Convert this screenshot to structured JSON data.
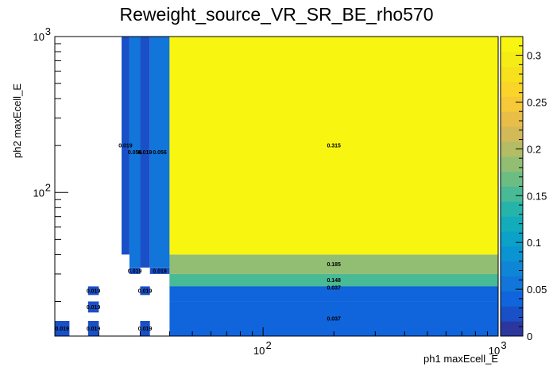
{
  "chart_data": {
    "type": "heatmap",
    "title": "Reweight_source_VR_SR_BE_rho570",
    "xlabel": "ph1 maxEcell_E",
    "ylabel": "ph2 maxEcell_E",
    "x_scale": "log",
    "y_scale": "log",
    "xlim": [
      13,
      1000
    ],
    "ylim": [
      12,
      1000
    ],
    "x_tick_labels": [
      {
        "value": 100,
        "base": "10",
        "exp": "2"
      },
      {
        "value": 1000,
        "base": "10",
        "exp": "3"
      }
    ],
    "y_tick_labels": [
      {
        "value": 100,
        "base": "10",
        "exp": "2"
      },
      {
        "value": 1000,
        "base": "10",
        "exp": "3"
      }
    ],
    "zlim": [
      0,
      0.32
    ],
    "colorbar_ticks": [
      "0",
      "0.05",
      "0.1",
      "0.15",
      "0.2",
      "0.25",
      "0.3"
    ],
    "colorbar_tick_values": [
      0,
      0.05,
      0.1,
      0.15,
      0.2,
      0.25,
      0.3
    ],
    "cells": [
      {
        "x0": 13,
        "x1": 15,
        "y0": 12,
        "y1": 15,
        "value": 0.019,
        "label": "0.019"
      },
      {
        "x0": 18,
        "x1": 20,
        "y0": 12,
        "y1": 15,
        "value": 0.019,
        "label": "0.019"
      },
      {
        "x0": 30,
        "x1": 33,
        "y0": 12,
        "y1": 15,
        "value": 0.019,
        "label": "0.019"
      },
      {
        "x0": 40,
        "x1": 1000,
        "y0": 12,
        "y1": 20,
        "value": 0.037,
        "label": "0.037"
      },
      {
        "x0": 18,
        "x1": 20,
        "y0": 17,
        "y1": 20,
        "value": 0.019,
        "label": "0.019"
      },
      {
        "x0": 40,
        "x1": 1000,
        "y0": 20,
        "y1": 30,
        "value": 0.037,
        "label": "0.037"
      },
      {
        "x0": 18,
        "x1": 20,
        "y0": 22,
        "y1": 25,
        "value": 0.019,
        "label": "0.019"
      },
      {
        "x0": 30,
        "x1": 33,
        "y0": 22,
        "y1": 25,
        "value": 0.019,
        "label": "0.019"
      },
      {
        "x0": 40,
        "x1": 1000,
        "y0": 25,
        "y1": 30,
        "value": 0.148,
        "label": "0.148"
      },
      {
        "x0": 27,
        "x1": 30,
        "y0": 30,
        "y1": 33,
        "value": 0.019,
        "label": "0.019"
      },
      {
        "x0": 33,
        "x1": 40,
        "y0": 30,
        "y1": 33,
        "value": 0.019,
        "label": "0.019"
      },
      {
        "x0": 40,
        "x1": 1000,
        "y0": 30,
        "y1": 40,
        "value": 0.185,
        "label": "0.185"
      },
      {
        "x0": 25,
        "x1": 27,
        "y0": 40,
        "y1": 1000,
        "value": 0.019,
        "label": "0.019"
      },
      {
        "x0": 27,
        "x1": 30,
        "y0": 33,
        "y1": 1000,
        "value": 0.056,
        "label": "0.056"
      },
      {
        "x0": 30,
        "x1": 33,
        "y0": 33,
        "y1": 1000,
        "value": 0.019,
        "label": "0.019"
      },
      {
        "x0": 33,
        "x1": 40,
        "y0": 33,
        "y1": 1000,
        "value": 0.056,
        "label": "0.056"
      },
      {
        "x0": 40,
        "x1": 1000,
        "y0": 40,
        "y1": 1000,
        "value": 0.315,
        "label": "0.315"
      }
    ],
    "grid": false,
    "legend": "colorbar right"
  }
}
